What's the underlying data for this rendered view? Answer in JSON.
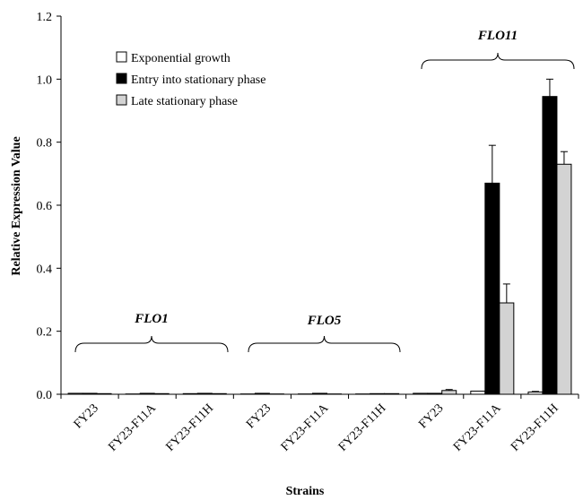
{
  "chart_data": {
    "type": "bar",
    "xlabel": "Strains",
    "ylabel": "Relative Expression Value",
    "ylim": [
      0,
      1.2
    ],
    "yticks": [
      "0.0",
      "0.2",
      "0.4",
      "0.6",
      "0.8",
      "1.0",
      "1.2"
    ],
    "grid": false,
    "legend_position": "top-left",
    "groups": [
      {
        "label": "FLO1",
        "categories": [
          "FY23",
          "FY23-F11A",
          "FY23-F11H"
        ]
      },
      {
        "label": "FLO5",
        "categories": [
          "FY23",
          "FY23-F11A",
          "FY23-F11H"
        ]
      },
      {
        "label": "FLO11",
        "categories": [
          "FY23",
          "FY23-F11A",
          "FY23-F11H"
        ]
      }
    ],
    "categories": [
      "FY23",
      "FY23-F11A",
      "FY23-F11H",
      "FY23",
      "FY23-F11A",
      "FY23-F11H",
      "FY23",
      "FY23-F11A",
      "FY23-F11H"
    ],
    "series": [
      {
        "name": "Exponential growth",
        "color": "#ffffff",
        "values": [
          0.003,
          0.001,
          0.002,
          0.001,
          0.001,
          0.001,
          0.003,
          0.01,
          0.007
        ],
        "errors": [
          0,
          0,
          0,
          0,
          0,
          0,
          0,
          0,
          0.002
        ]
      },
      {
        "name": "Entry into stationary phase",
        "color": "#000000",
        "values": [
          0.003,
          0.003,
          0.003,
          0.003,
          0.003,
          0.002,
          0.003,
          0.67,
          0.945
        ],
        "errors": [
          0,
          0,
          0,
          0,
          0,
          0,
          0,
          0.12,
          0.055
        ]
      },
      {
        "name": "Late stationary phase",
        "color": "#d3d3d3",
        "values": [
          0.002,
          0.002,
          0.002,
          0.001,
          0.001,
          0.002,
          0.012,
          0.29,
          0.73
        ],
        "errors": [
          0,
          0,
          0,
          0,
          0,
          0,
          0.003,
          0.06,
          0.04
        ]
      }
    ]
  }
}
